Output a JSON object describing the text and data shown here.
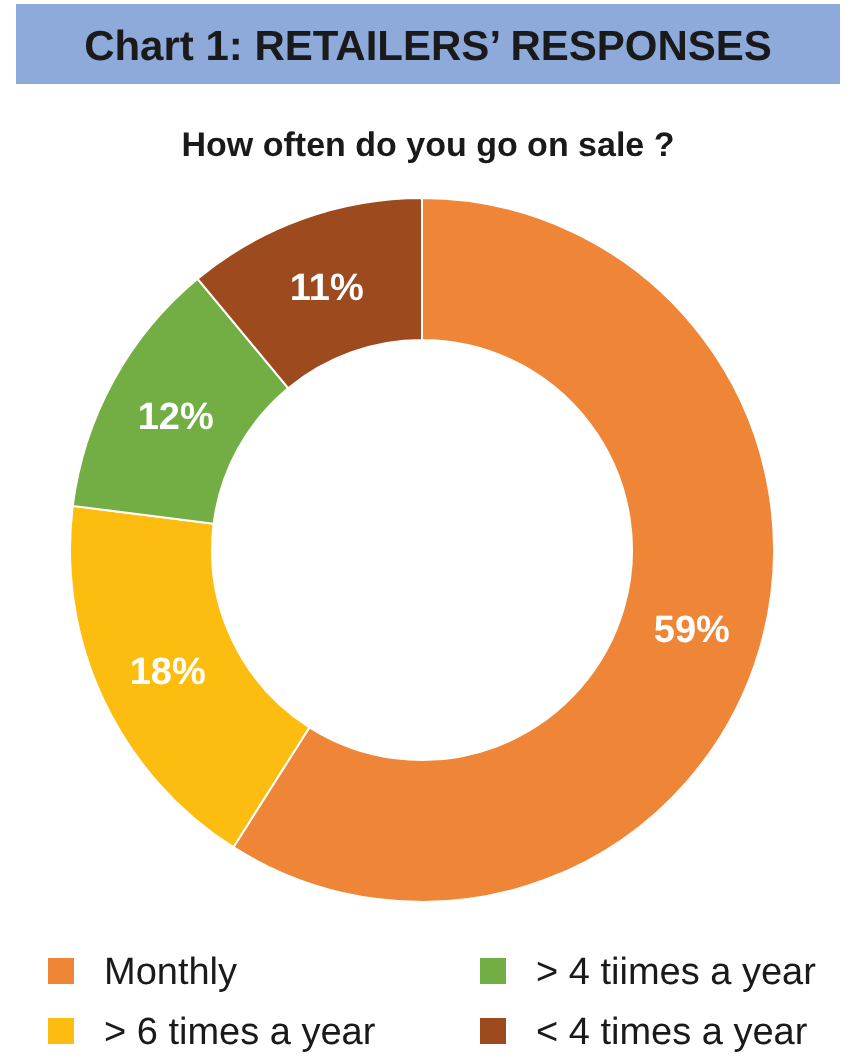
{
  "chart_data": {
    "type": "donut",
    "title": "Chart 1: RETAILERS’ RESPONSES",
    "subtitle": "How often do you go on sale ?",
    "categories": [
      "Monthly",
      "> 6 times a year",
      "> 4 tiimes a year",
      "< 4 times a year"
    ],
    "values": [
      59,
      18,
      12,
      11
    ],
    "colors": [
      "#ef8536",
      "#fdbd10",
      "#72ae44",
      "#9e4a1f"
    ],
    "value_labels": [
      "59%",
      "18%",
      "12%",
      "11%"
    ],
    "legend": "bottom"
  }
}
